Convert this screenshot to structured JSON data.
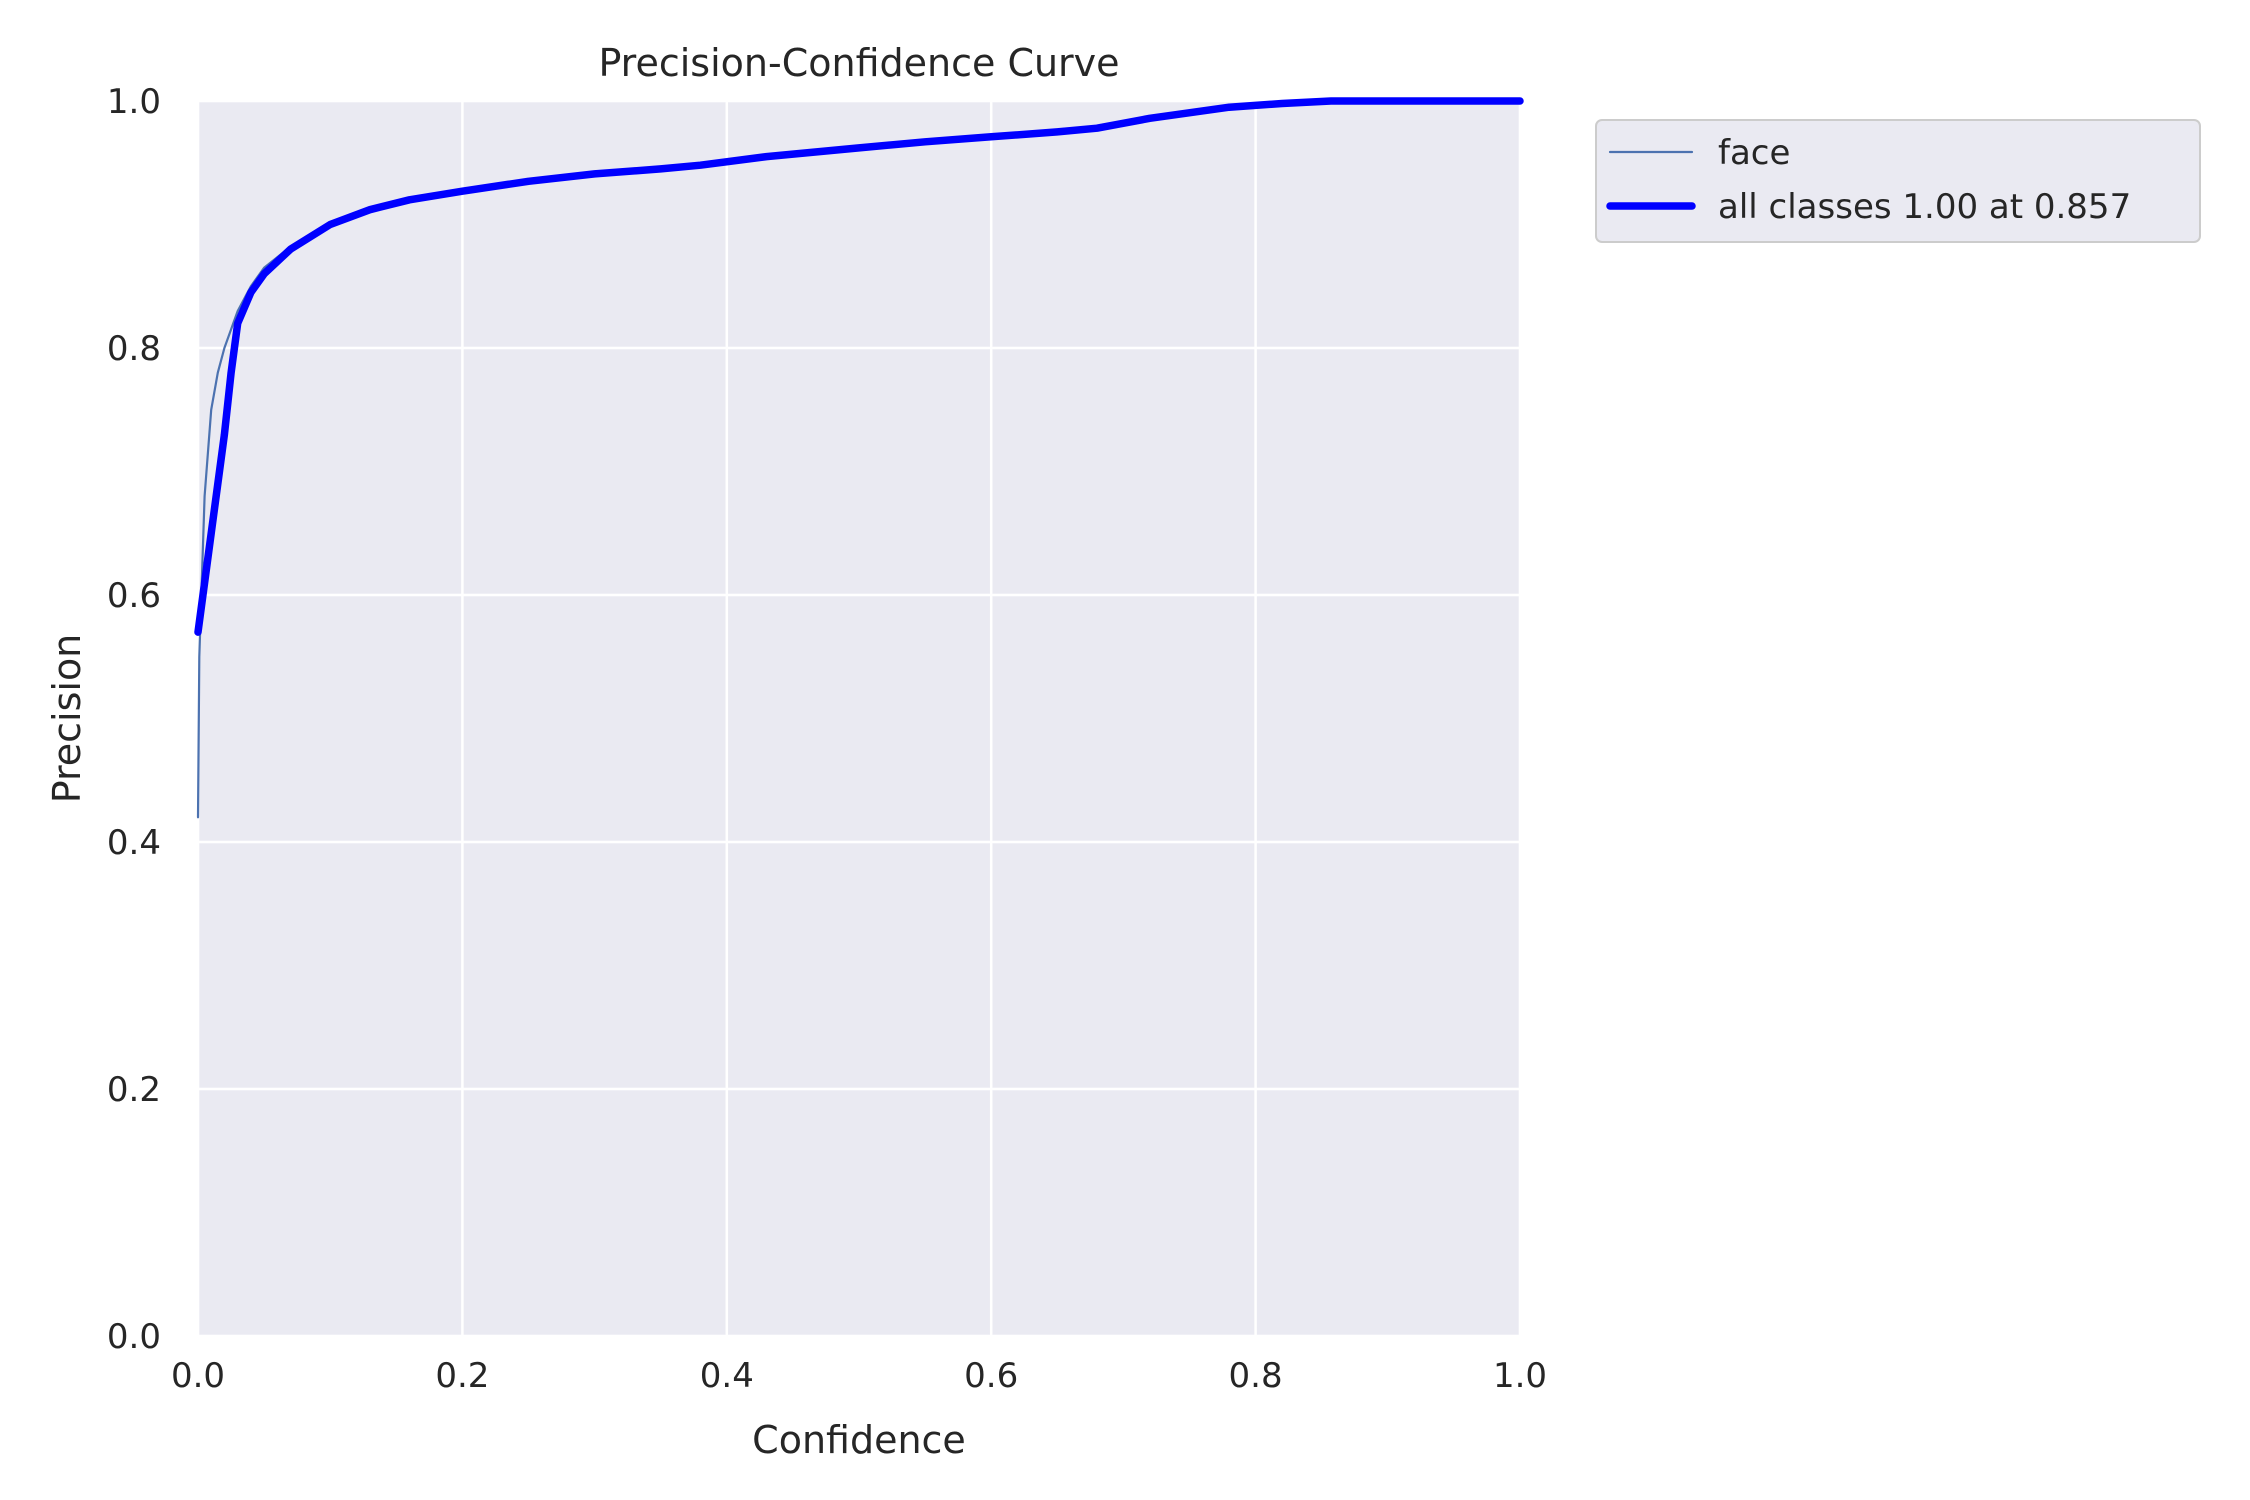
{
  "chart_data": {
    "type": "line",
    "title": "Precision-Confidence Curve",
    "xlabel": "Confidence",
    "ylabel": "Precision",
    "xlim": [
      0,
      1
    ],
    "ylim": [
      0,
      1
    ],
    "xticks": [
      "0.0",
      "0.2",
      "0.4",
      "0.6",
      "0.8",
      "1.0"
    ],
    "yticks": [
      "0.0",
      "0.2",
      "0.4",
      "0.6",
      "0.8",
      "1.0"
    ],
    "grid": true,
    "legend_position": "outside-top-right",
    "background_color": "#eaeaf2",
    "series": [
      {
        "name": "face",
        "color": "#4c72b0",
        "x": [
          0.0,
          0.001,
          0.005,
          0.01,
          0.015,
          0.02,
          0.03,
          0.04,
          0.05,
          0.07,
          0.1,
          0.13,
          0.16,
          0.2,
          0.25,
          0.3,
          0.35,
          0.38,
          0.43,
          0.5,
          0.55,
          0.6,
          0.65,
          0.68,
          0.72,
          0.78,
          0.82,
          0.85,
          0.9,
          1.0
        ],
        "y": [
          0.42,
          0.55,
          0.68,
          0.75,
          0.78,
          0.8,
          0.83,
          0.85,
          0.865,
          0.882,
          0.9,
          0.912,
          0.92,
          0.927,
          0.935,
          0.941,
          0.945,
          0.948,
          0.955,
          0.962,
          0.967,
          0.971,
          0.975,
          0.978,
          0.986,
          0.995,
          0.998,
          1.0,
          1.0,
          1.0
        ]
      },
      {
        "name": "all classes 1.00 at 0.857",
        "color": "#0000ff",
        "x": [
          0.0,
          0.01,
          0.02,
          0.025,
          0.03,
          0.04,
          0.05,
          0.07,
          0.1,
          0.13,
          0.16,
          0.2,
          0.25,
          0.3,
          0.35,
          0.38,
          0.43,
          0.5,
          0.55,
          0.6,
          0.65,
          0.68,
          0.72,
          0.78,
          0.82,
          0.857,
          0.9,
          1.0
        ],
        "y": [
          0.57,
          0.65,
          0.73,
          0.78,
          0.82,
          0.845,
          0.86,
          0.88,
          0.9,
          0.912,
          0.92,
          0.927,
          0.935,
          0.941,
          0.945,
          0.948,
          0.955,
          0.962,
          0.967,
          0.971,
          0.975,
          0.978,
          0.986,
          0.995,
          0.998,
          1.0,
          1.0,
          1.0
        ]
      }
    ]
  }
}
